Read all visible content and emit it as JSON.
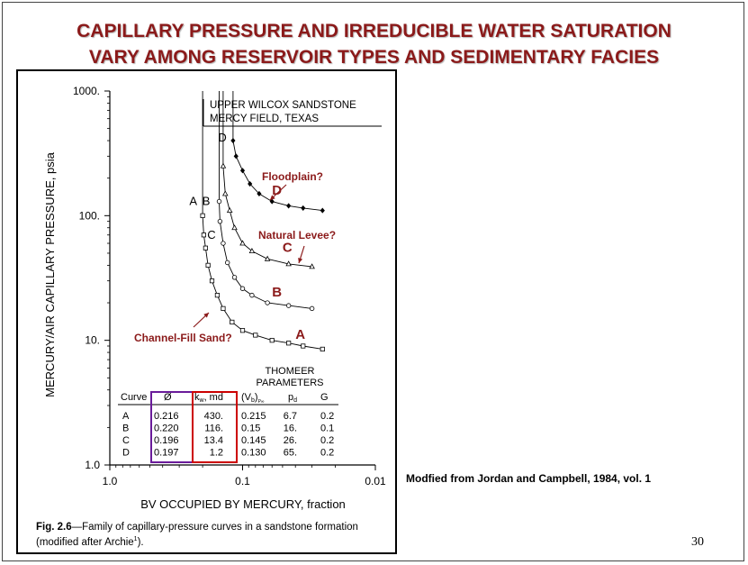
{
  "slide": {
    "title_line1": "CAPILLARY PRESSURE AND IRREDUCIBLE WATER SATURATION",
    "title_line2": "VARY AMONG RESERVOIR TYPES AND SEDIMENTARY FACIES",
    "source_note": "Modfied from Jordan and Campbell, 1984, vol. 1",
    "slide_number": "30",
    "title_color": "#8b1a1a",
    "annotation_color": "#8b1a1a"
  },
  "figure": {
    "caption_label": "Fig. 2.6",
    "caption_text": "—Family of capillary-pressure curves in a sandstone formation (modified after Archie",
    "caption_ref": "1",
    "caption_end": ")."
  },
  "chart_data": {
    "type": "line",
    "title": "UPPER WILCOX SANDSTONE",
    "subtitle": "MERCY FIELD, TEXAS",
    "xlabel": "BV OCCUPIED BY MERCURY, fraction",
    "ylabel": "MERCURY/AIR CAPILLARY PRESSURE, psia",
    "x_scale": "log-reversed",
    "y_scale": "log",
    "xlim": [
      1.0,
      0.01
    ],
    "ylim": [
      1.0,
      1000
    ],
    "x_ticks": [
      "1.0",
      "0.1",
      "0.01"
    ],
    "y_ticks": [
      "1000.",
      "100.",
      "10.",
      "1.0"
    ],
    "grid": false,
    "series": [
      {
        "name": "A",
        "marker": "square",
        "pd": 6.7,
        "vb_inf": 0.215,
        "g": 0.2,
        "points": [
          [
            0.2,
            100
          ],
          [
            0.196,
            70
          ],
          [
            0.19,
            55
          ],
          [
            0.182,
            40
          ],
          [
            0.17,
            30
          ],
          [
            0.155,
            23
          ],
          [
            0.14,
            18
          ],
          [
            0.12,
            14
          ],
          [
            0.1,
            12
          ],
          [
            0.08,
            11
          ],
          [
            0.06,
            10
          ],
          [
            0.045,
            9.5
          ],
          [
            0.035,
            9.0
          ],
          [
            0.025,
            8.5
          ]
        ]
      },
      {
        "name": "B",
        "marker": "circle",
        "pd": 16,
        "vb_inf": 0.15,
        "g": 0.1,
        "points": [
          [
            0.15,
            130
          ],
          [
            0.148,
            90
          ],
          [
            0.14,
            60
          ],
          [
            0.13,
            42
          ],
          [
            0.115,
            32
          ],
          [
            0.1,
            26
          ],
          [
            0.085,
            23
          ],
          [
            0.065,
            20
          ],
          [
            0.045,
            19
          ],
          [
            0.03,
            18
          ]
        ]
      },
      {
        "name": "C",
        "marker": "triangle",
        "pd": 26,
        "vb_inf": 0.145,
        "g": 0.2,
        "points": [
          [
            0.14,
            250
          ],
          [
            0.135,
            150
          ],
          [
            0.125,
            110
          ],
          [
            0.115,
            80
          ],
          [
            0.1,
            60
          ],
          [
            0.085,
            52
          ],
          [
            0.065,
            45
          ],
          [
            0.045,
            41
          ],
          [
            0.03,
            39
          ]
        ]
      },
      {
        "name": "D",
        "marker": "diamond",
        "pd": 65,
        "vb_inf": 0.13,
        "g": 0.2,
        "points": [
          [
            0.118,
            400
          ],
          [
            0.112,
            300
          ],
          [
            0.1,
            230
          ],
          [
            0.088,
            180
          ],
          [
            0.075,
            150
          ],
          [
            0.06,
            130
          ],
          [
            0.045,
            120
          ],
          [
            0.035,
            115
          ],
          [
            0.025,
            110
          ]
        ]
      }
    ],
    "curve_labels": [
      {
        "text": "A",
        "at": [
          0.2,
          130
        ]
      },
      {
        "text": "B",
        "at": [
          0.16,
          130
        ]
      },
      {
        "text": "C",
        "at": [
          0.145,
          70
        ]
      },
      {
        "text": "D",
        "at": [
          0.12,
          420
        ]
      }
    ],
    "facies_labels": [
      {
        "text": "A",
        "series": "A"
      },
      {
        "text": "B",
        "series": "B"
      },
      {
        "text": "C",
        "series": "C"
      },
      {
        "text": "D",
        "series": "D"
      }
    ],
    "annotations": [
      {
        "text": "Floodplain?"
      },
      {
        "text": "Natural Levee?"
      },
      {
        "text": "Channel-Fill Sand?"
      }
    ],
    "table": {
      "title_line1": "THOMEER",
      "title_line2": "PARAMETERS",
      "headers": [
        "Curve",
        "Ø",
        "k",
        "(V",
        "p",
        "G"
      ],
      "header_k_sub": "w",
      "header_k_unit": ", md",
      "header_vb_sub": "b",
      "header_vb_end": ")",
      "header_vb_inf": "P∞",
      "header_pd_sub": "d",
      "rows": [
        [
          "A",
          "0.216",
          "430.",
          "0.215",
          "6.7",
          "0.2"
        ],
        [
          "B",
          "0.220",
          "116.",
          "0.15",
          "16.",
          "0.1"
        ],
        [
          "C",
          "0.196",
          "13.4",
          "0.145",
          "26.",
          "0.2"
        ],
        [
          "D",
          "0.197",
          "1.2",
          "0.130",
          "65.",
          "0.2"
        ]
      ],
      "highlight_porosity_color": "#6a1b9a",
      "highlight_perm_color": "#cc0000"
    }
  }
}
